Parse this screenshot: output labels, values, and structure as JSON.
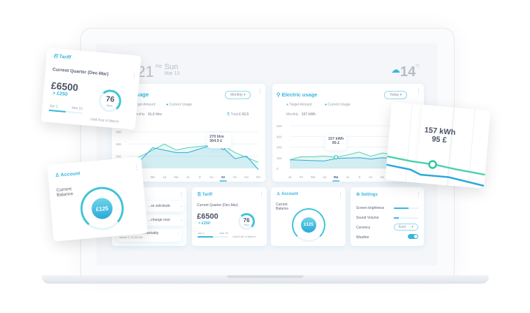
{
  "header": {
    "time": "21",
    "ampm": "PM",
    "day": "Sun",
    "date": "Mar 13",
    "weather_icon": "cloud-snow-icon",
    "temp": "14",
    "temp_unit": "°C"
  },
  "water": {
    "title": "usage",
    "period": "Monthly",
    "legend": [
      "Target Amount",
      "Current Usage"
    ],
    "monthly_label": "Monthly",
    "monthly_value": "41.6 litre",
    "total_label": "Total",
    "total_value": "£ 62.5",
    "tooltip": [
      "270 litre",
      "364.5 £"
    ],
    "selected": "Se"
  },
  "electric": {
    "title": "Electric usage",
    "period": "Today",
    "legend": [
      "Target Amount",
      "Current Usage"
    ],
    "monthly_label": "Monthly",
    "monthly_value": "157 kWh",
    "tooltip": [
      "157 kWh",
      "95 £"
    ],
    "selected": "Ma"
  },
  "chart_data": [
    {
      "type": "line",
      "yticks": [
        200,
        300,
        400
      ],
      "categories": [
        "Ja",
        "Fe",
        "Ma",
        "Ap",
        "Ma",
        "Ju",
        "Jl",
        "Au",
        "Se",
        "Oc",
        "No",
        "De"
      ],
      "series": [
        {
          "name": "Target Amount",
          "values": [
            170,
            200,
            250,
            300,
            250,
            270,
            280,
            290,
            290,
            230,
            190,
            150
          ]
        },
        {
          "name": "Current Usage",
          "values": [
            160,
            170,
            270,
            250,
            230,
            230,
            260,
            290,
            270,
            180,
            200,
            90
          ]
        }
      ],
      "ylim": [
        100,
        450
      ]
    },
    {
      "type": "line",
      "yticks": [
        0,
        150,
        300,
        450,
        600
      ],
      "categories": [
        "Ja",
        "Fe",
        "Ma",
        "Ap",
        "Ma",
        "Ju",
        "Jl",
        "Au",
        "Se",
        "Oc",
        "No",
        "De"
      ],
      "series": [
        {
          "name": "Target Amount",
          "values": [
            120,
            165,
            165,
            175,
            157,
            190,
            230,
            170,
            215,
            200,
            190,
            180
          ]
        },
        {
          "name": "Current Usage",
          "values": [
            120,
            115,
            110,
            105,
            140,
            145,
            150,
            130,
            150,
            140,
            130,
            120
          ]
        }
      ],
      "ylim": [
        0,
        600
      ]
    }
  ],
  "notifications": {
    "items": [
      {
        "text": "...se solicitude"
      },
      {
        "text": "...change man"
      },
      {
        "text": "...ulgence ten remarkably",
        "time": "March 2, 11:20 AM"
      }
    ]
  },
  "tariff": {
    "title": "Tariff",
    "subtitle": "Current Quarter (Dec-Mar)",
    "amount": "£6500",
    "delta": "> £250",
    "start": "Jan 1",
    "end": "Mar 31",
    "days": "76",
    "days_label": "days",
    "until": "Until End of March"
  },
  "account": {
    "title": "Account",
    "label": "Current Balance",
    "balance": "£125"
  },
  "settings": {
    "title": "Settings",
    "brightness_label": "Screen brightness",
    "brightness": 0.6,
    "volume_label": "Sound Volume",
    "volume": 0.2,
    "currency_label": "Currency",
    "currency": "Euro",
    "weather_label": "Weather",
    "weather_on": true
  },
  "colors": {
    "accent": "#35b6e0",
    "green": "#4fd1b0",
    "blue": "#2aa8dc"
  }
}
